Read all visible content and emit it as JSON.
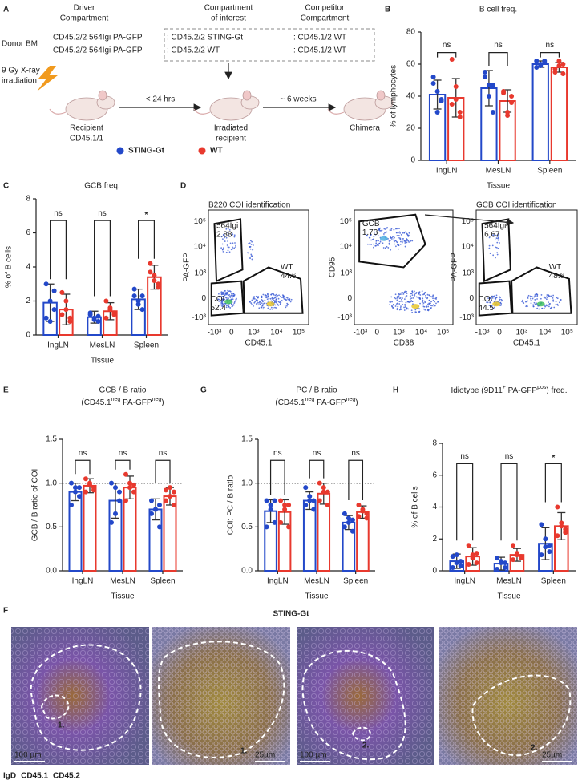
{
  "panels": [
    "A",
    "B",
    "C",
    "D",
    "E",
    "F",
    "G",
    "H"
  ],
  "schematic": {
    "headers": [
      [
        "Driver",
        "Compartment"
      ],
      [
        "Compartment",
        "of interest"
      ],
      [
        "Competitor",
        "Compartment"
      ]
    ],
    "donor_label": "Donor BM",
    "rows": [
      [
        "CD45.2/2 564Igi PA-GFP",
        ": CD45.2/2 STING-Gt",
        ": CD45.1/2 WT"
      ],
      [
        "CD45.2/2 564Igi PA-GFP",
        ": CD45.2/2 WT",
        ": CD45.1/2 WT"
      ]
    ],
    "irradiation": [
      "9 Gy X-ray",
      "irradiation"
    ],
    "steps": [
      "< 24 hrs",
      "~ 6 weeks"
    ],
    "mice": [
      [
        "Recipient",
        "CD45.1/1"
      ],
      [
        "Irradiated",
        "recipient"
      ],
      [
        "Chimera"
      ]
    ]
  },
  "legend": [
    {
      "name": "STING-Gt",
      "color": "#2348c9"
    },
    {
      "name": "WT",
      "color": "#e8392e"
    }
  ],
  "chart_data": [
    {
      "type": "bar",
      "title": "B cell freq.",
      "ylabel": "% of lymphocytes",
      "xlabel": "Tissue",
      "categories": [
        "IngLN",
        "MesLN",
        "Spleen"
      ],
      "ylim": [
        0,
        80
      ],
      "yticks": [
        0,
        20,
        40,
        60,
        80
      ],
      "annotations": [
        "ns",
        "ns",
        "ns"
      ],
      "series": [
        {
          "values": [
            41,
            45,
            60
          ],
          "errors": [
            9,
            11,
            2
          ],
          "points": [
            [
              48,
              43,
              38,
              52,
              30,
              37
            ],
            [
              55,
              47,
              30,
              52,
              40,
              47
            ],
            [
              62,
              59,
              61,
              58,
              60,
              62
            ]
          ]
        },
        {
          "values": [
            39,
            37,
            58
          ],
          "errors": [
            12,
            7,
            3
          ],
          "points": [
            [
              63,
              38,
              30,
              35,
              46,
              27
            ],
            [
              42,
              30,
              36,
              43,
              28,
              40
            ],
            [
              55,
              62,
              60,
              57,
              59,
              54
            ]
          ]
        }
      ]
    },
    {
      "type": "bar",
      "title": "GCB freq.",
      "ylabel": "% of B cells",
      "xlabel": "Tissue",
      "categories": [
        "IngLN",
        "MesLN",
        "Spleen"
      ],
      "ylim": [
        0,
        8
      ],
      "yticks": [
        0,
        2,
        4,
        6,
        8
      ],
      "annotations": [
        "ns",
        "ns",
        "*"
      ],
      "series": [
        {
          "values": [
            1.9,
            1.05,
            2.1
          ],
          "errors": [
            1.1,
            0.35,
            0.6
          ],
          "points": [
            [
              3.0,
              2.0,
              1.5,
              1.0,
              0.8,
              2.6
            ],
            [
              1.3,
              1.0,
              0.8,
              1.2,
              0.9,
              1.1
            ],
            [
              2.7,
              2.0,
              1.5,
              2.3,
              1.8,
              2.3
            ]
          ]
        },
        {
          "values": [
            1.5,
            1.4,
            3.4
          ],
          "errors": [
            0.9,
            0.5,
            0.7
          ],
          "points": [
            [
              2.5,
              1.5,
              0.8,
              1.2,
              2.0,
              1.0
            ],
            [
              2.0,
              1.6,
              1.2,
              1.0,
              1.5,
              1.3
            ],
            [
              4.2,
              3.5,
              2.8,
              3.7,
              3.2,
              3.0
            ]
          ]
        }
      ]
    },
    {
      "type": "bar",
      "title": "GCB / B ratio",
      "subtitle": [
        "(CD45.1",
        "neg",
        " PA-GFP",
        "neg",
        ")"
      ],
      "ylabel": "GCB / B ratio of COI",
      "xlabel": "Tissue",
      "categories": [
        "IngLN",
        "MesLN",
        "Spleen"
      ],
      "ylim": [
        0,
        1.5
      ],
      "yticks": [
        {
          "value": 0,
          "label": "0.0"
        },
        0.5,
        {
          "value": 1,
          "label": "1.0"
        },
        1.5
      ],
      "reference_line": 1,
      "annotations": [
        "ns",
        "ns",
        "ns"
      ],
      "series": [
        {
          "values": [
            0.9,
            0.8,
            0.7
          ],
          "errors": [
            0.1,
            0.2,
            0.12
          ],
          "points": [
            [
              1.0,
              0.95,
              0.85,
              0.75,
              0.9,
              0.95
            ],
            [
              1.0,
              0.95,
              0.8,
              0.55,
              0.65,
              0.9
            ],
            [
              0.8,
              0.7,
              0.5,
              0.65,
              0.7,
              0.75
            ]
          ]
        },
        {
          "values": [
            0.97,
            0.95,
            0.85
          ],
          "errors": [
            0.08,
            0.13,
            0.1
          ],
          "points": [
            [
              1.05,
              1.0,
              0.95,
              0.9,
              0.98,
              0.92
            ],
            [
              1.1,
              1.0,
              0.9,
              0.8,
              0.95,
              0.98
            ],
            [
              0.92,
              0.95,
              0.75,
              0.8,
              0.85,
              0.9
            ]
          ]
        }
      ]
    },
    {
      "type": "bar",
      "title": "PC / B ratio",
      "subtitle": [
        "(CD45.1",
        "neg",
        " PA-GFP",
        "neg",
        ")"
      ],
      "ylabel": "COI: PC / B ratio",
      "xlabel": "Tissue",
      "categories": [
        "IngLN",
        "MesLN",
        "Spleen"
      ],
      "ylim": [
        0,
        1.5
      ],
      "yticks": [
        {
          "value": 0,
          "label": "0.0"
        },
        0.5,
        {
          "value": 1,
          "label": "1.0"
        },
        1.5
      ],
      "reference_line": 1,
      "annotations": [
        "ns",
        "ns",
        "ns"
      ],
      "series": [
        {
          "values": [
            0.68,
            0.8,
            0.55
          ],
          "errors": [
            0.13,
            0.1,
            0.08
          ],
          "points": [
            [
              0.8,
              0.75,
              0.55,
              0.5,
              0.7,
              0.8
            ],
            [
              0.95,
              0.85,
              0.7,
              0.75,
              0.8,
              0.8
            ],
            [
              0.65,
              0.6,
              0.45,
              0.5,
              0.55,
              0.58
            ]
          ]
        },
        {
          "values": [
            0.67,
            0.88,
            0.67
          ],
          "errors": [
            0.14,
            0.12,
            0.07
          ],
          "points": [
            [
              0.8,
              0.75,
              0.5,
              0.55,
              0.7,
              0.75
            ],
            [
              1.0,
              0.95,
              0.75,
              0.8,
              0.9,
              0.9
            ],
            [
              0.75,
              0.7,
              0.6,
              0.62,
              0.68,
              0.65
            ]
          ]
        }
      ]
    },
    {
      "type": "bar",
      "title": [
        "Idiotype (9D11",
        "+",
        " PA-GFP",
        "pos",
        ") freq."
      ],
      "ylabel": "% of B cells",
      "xlabel": "Tissue",
      "categories": [
        "IngLN",
        "MesLN",
        "Spleen"
      ],
      "ylim": [
        0,
        8
      ],
      "yticks": [
        0,
        2,
        4,
        6,
        8
      ],
      "annotations": [
        "ns",
        "ns",
        "*"
      ],
      "series": [
        {
          "values": [
            0.6,
            0.45,
            1.7
          ],
          "errors": [
            0.45,
            0.4,
            1.0
          ],
          "points": [
            [
              0.9,
              0.5,
              0.3,
              0.2,
              1.0,
              0.6
            ],
            [
              0.8,
              0.5,
              0.2,
              0.1,
              0.6,
              0.5
            ],
            [
              2.9,
              2.0,
              1.2,
              1.0,
              1.5,
              1.6
            ]
          ]
        },
        {
          "values": [
            0.9,
            1.0,
            2.8
          ],
          "errors": [
            0.55,
            0.4,
            0.85
          ],
          "points": [
            [
              1.6,
              1.0,
              0.5,
              0.4,
              0.8,
              1.1
            ],
            [
              1.6,
              1.0,
              0.8,
              0.7,
              1.1,
              0.9
            ],
            [
              4.0,
              3.0,
              2.4,
              2.2,
              2.8,
              2.6
            ]
          ]
        }
      ]
    }
  ],
  "flow": {
    "ticks": [
      "-10³",
      "0",
      "10³",
      "10⁴",
      "10⁵"
    ],
    "plots": [
      {
        "title": "B220 COI identification",
        "xlabel": "CD45.1",
        "ylabel": "PA-GFP",
        "gates": [
          [
            "564Igi",
            "2.88"
          ],
          [
            "WT",
            "44.6"
          ],
          [
            "COI",
            "52.4"
          ]
        ]
      },
      {
        "xlabel": "CD38",
        "ylabel": "CD95",
        "gates": [
          [
            "GCB",
            "1.73"
          ]
        ]
      },
      {
        "title": "GCB COI identification",
        "xlabel": "CD45.1",
        "ylabel": "PA-GFP",
        "gates": [
          [
            "564Igi",
            "6.67"
          ],
          [
            "WT",
            "48.6"
          ],
          [
            "COI",
            "44.5"
          ]
        ]
      }
    ]
  },
  "micrographs": {
    "header": "STING-Gt",
    "channels": [
      {
        "name": "IgD",
        "color": "#6f9be0"
      },
      {
        "name": "CD45.1",
        "color": "#3fae3f"
      },
      {
        "name": "CD45.2",
        "color": "#d9303a"
      }
    ],
    "scale_bars": [
      "100 µm",
      "25µm",
      "100 µm",
      "25µm"
    ],
    "regions": [
      "1.",
      "1.",
      "2.",
      "2."
    ]
  }
}
